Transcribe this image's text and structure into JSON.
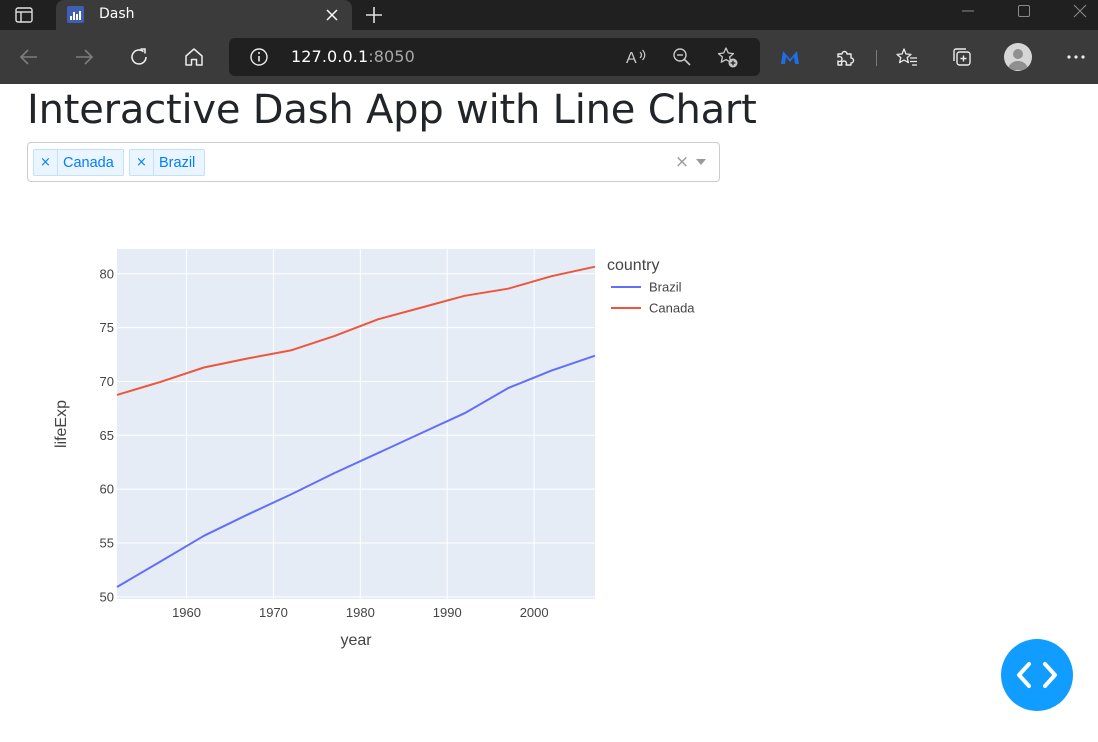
{
  "browser": {
    "tab_title": "Dash",
    "address_host": "127.0.0.1",
    "address_port": ":8050",
    "icons": {
      "sidebar": "tab-actions-icon",
      "favicon": "dash-favicon",
      "close": "close-icon",
      "new_tab": "plus-icon",
      "back": "back-arrow-icon",
      "forward": "forward-arrow-icon",
      "refresh": "refresh-icon",
      "home": "home-icon",
      "info": "info-icon",
      "read_aloud": "read-aloud-icon",
      "zoom": "zoom-out-icon",
      "favorite": "add-favorite-icon",
      "extension_m": "malwarebytes-icon",
      "extensions": "puzzle-icon",
      "favorites": "favorites-icon",
      "collections": "collections-icon",
      "profile": "avatar",
      "more": "more-icon"
    }
  },
  "page": {
    "title": "Interactive Dash App with Line Chart"
  },
  "dropdown": {
    "selected": [
      {
        "label": "Canada",
        "remove": "×"
      },
      {
        "label": "Brazil",
        "remove": "×"
      }
    ],
    "clear": "×"
  },
  "chart_data": {
    "type": "line",
    "xlabel": "year",
    "ylabel": "lifeExp",
    "xlim": [
      1952,
      2007
    ],
    "ylim": [
      49.8,
      82.3
    ],
    "xticks": [
      1960,
      1970,
      1980,
      1990,
      2000
    ],
    "yticks": [
      50,
      55,
      60,
      65,
      70,
      75,
      80
    ],
    "legend_title": "country",
    "legend_position": "right",
    "grid": true,
    "x": [
      1952,
      1957,
      1962,
      1967,
      1972,
      1977,
      1982,
      1987,
      1992,
      1997,
      2002,
      2007
    ],
    "series": [
      {
        "name": "Brazil",
        "color": "#636efa",
        "values": [
          50.917,
          53.285,
          55.665,
          57.632,
          59.504,
          61.489,
          63.336,
          65.205,
          67.057,
          69.388,
          71.006,
          72.39
        ]
      },
      {
        "name": "Canada",
        "color": "#ef553b",
        "values": [
          68.75,
          69.96,
          71.3,
          72.13,
          72.88,
          74.21,
          75.76,
          76.86,
          77.95,
          78.61,
          79.77,
          80.653
        ]
      }
    ]
  },
  "debug": {
    "icon": "code-icon",
    "color": "#119dff"
  }
}
